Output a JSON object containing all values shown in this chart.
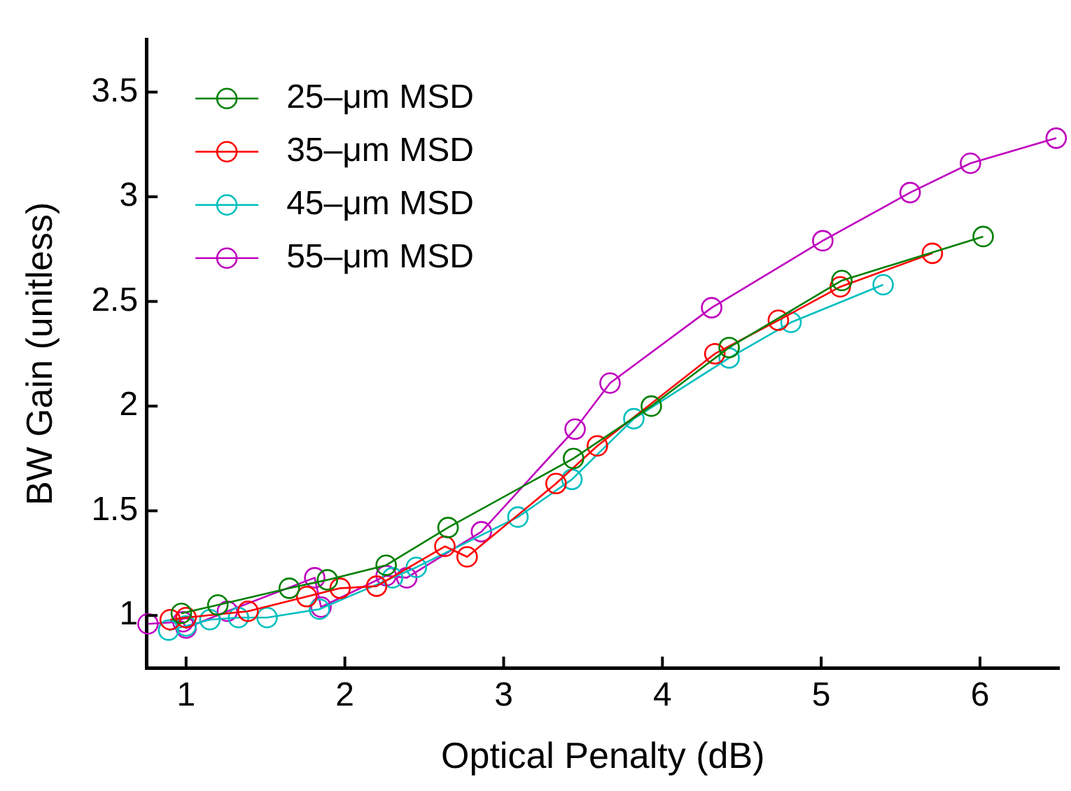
{
  "chart_data": {
    "type": "line",
    "xlabel": "Optical Penalty (dB)",
    "ylabel": "BW Gain (unitless)",
    "xlim": [
      0.75,
      6.5
    ],
    "ylim": [
      0.75,
      3.75
    ],
    "xticks": [
      1,
      2,
      3,
      4,
      5,
      6
    ],
    "yticks": [
      1,
      1.5,
      2,
      2.5,
      3,
      3.5
    ],
    "grid": false,
    "legend": "top left",
    "marker": "circle",
    "line_style": "solid",
    "series": [
      {
        "name": "25–μm MSD",
        "color": "#008000",
        "x": [
          0.97,
          1.2,
          1.65,
          1.89,
          2.26,
          2.65,
          3.44,
          3.93,
          4.42,
          5.13,
          6.02
        ],
        "values": [
          1.01,
          1.05,
          1.13,
          1.17,
          1.24,
          1.42,
          1.75,
          2.0,
          2.28,
          2.6,
          2.81
        ]
      },
      {
        "name": "35–μm MSD",
        "color": "#ff0000",
        "x": [
          0.9,
          1.0,
          1.39,
          1.76,
          1.97,
          2.2,
          2.63,
          2.77,
          3.33,
          3.59,
          4.33,
          4.73,
          5.12,
          5.7
        ],
        "values": [
          0.98,
          0.99,
          1.02,
          1.09,
          1.13,
          1.14,
          1.33,
          1.28,
          1.63,
          1.81,
          2.25,
          2.41,
          2.57,
          2.73
        ]
      },
      {
        "name": "45–μm MSD",
        "color": "#00bfbf",
        "x": [
          0.89,
          1.0,
          1.15,
          1.33,
          1.51,
          1.84,
          2.3,
          2.45,
          3.09,
          3.43,
          3.82,
          4.42,
          4.81,
          5.39
        ],
        "values": [
          0.93,
          0.95,
          0.98,
          0.99,
          0.99,
          1.03,
          1.18,
          1.23,
          1.47,
          1.65,
          1.94,
          2.23,
          2.4,
          2.58
        ]
      },
      {
        "name": "55–μm MSD",
        "color": "#bf00bf",
        "x": [
          0.76,
          0.98,
          1.0,
          1.26,
          1.81,
          1.85,
          2.26,
          2.39,
          2.86,
          3.45,
          3.67,
          4.31,
          5.01,
          5.56,
          5.94,
          6.48
        ],
        "values": [
          0.96,
          0.97,
          0.94,
          1.02,
          1.18,
          1.04,
          1.19,
          1.18,
          1.4,
          1.89,
          2.11,
          2.47,
          2.79,
          3.02,
          3.16,
          3.28
        ]
      }
    ]
  }
}
